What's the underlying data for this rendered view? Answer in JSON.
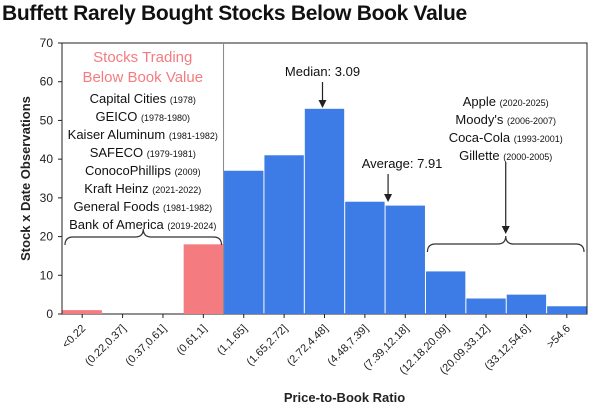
{
  "chart_data": {
    "type": "bar",
    "title": "Buffett Rarely Bought Stocks Below Book Value",
    "xlabel": "Price-to-Book Ratio",
    "ylabel": "Stock x Date Observations",
    "ylim": [
      0,
      70
    ],
    "yticks": [
      "0",
      "10",
      "20",
      "30",
      "40",
      "50",
      "60",
      "70"
    ],
    "categories": [
      "<0.22",
      "(0.22,0.37]",
      "(0.37,0.61]",
      "(0.61,1]",
      "(1,1.65]",
      "(1.65,2.72]",
      "(2.72,4.48]",
      "(4.48,7.39]",
      "(7.39,12.18]",
      "(12.18,20.09]",
      "(20.09,33.12]",
      "(33.12,54.6]",
      ">54.6"
    ],
    "values": [
      1,
      0,
      0,
      18,
      37,
      41,
      53,
      29,
      28,
      11,
      4,
      5,
      2
    ],
    "below_book_color": "#f47c80",
    "above_book_color": "#3d7be6",
    "below_book_heading": [
      "Stocks Trading",
      "Below Book Value"
    ],
    "below_book_list": [
      {
        "name": "Capital Cities",
        "years": "(1978)"
      },
      {
        "name": "GEICO",
        "years": "(1978-1980)"
      },
      {
        "name": "Kaiser Aluminum",
        "years": "(1981-1982)"
      },
      {
        "name": "SAFECO",
        "years": "(1979-1981)"
      },
      {
        "name": "ConocoPhillips",
        "years": "(2009)"
      },
      {
        "name": "Kraft Heinz",
        "years": "(2021-2022)"
      },
      {
        "name": "General Foods",
        "years": "(1981-1982)"
      },
      {
        "name": "Bank of America",
        "years": "(2019-2024)"
      }
    ],
    "high_pb_list": [
      {
        "name": "Apple",
        "years": "(2020-2025)"
      },
      {
        "name": "Moody's",
        "years": "(2006-2007)"
      },
      {
        "name": "Coca-Cola",
        "years": "(1993-2001)"
      },
      {
        "name": "Gillette",
        "years": "(2000-2005)"
      }
    ],
    "annotations": {
      "median": {
        "label": "Median: 3.09",
        "category": "(2.72,4.48]",
        "value": 3.09
      },
      "average": {
        "label": "Average: 7.91",
        "category": "(7.39,12.18]",
        "value": 7.91
      }
    }
  }
}
